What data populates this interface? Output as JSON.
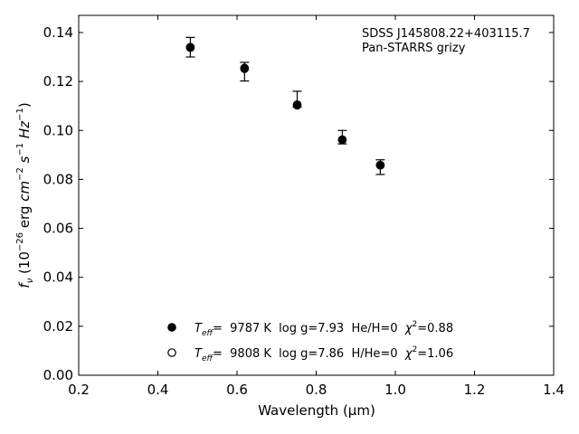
{
  "chart_data": {
    "type": "scatter",
    "xlabel": "Wavelength (μm)",
    "ylabel_parts": {
      "f": "f",
      "nu": "ν",
      "open": " (10",
      "exp26": "−26",
      "erg": " erg ",
      "cm": "cm",
      "exp2": "−2",
      "s": " s",
      "exp1": "−1",
      "hz": " Hz",
      "exp1b": "−1",
      "close": ")"
    },
    "xlim": [
      0.2,
      1.4
    ],
    "ylim": [
      0.0,
      0.147
    ],
    "x_ticks": [
      0.2,
      0.4,
      0.6,
      0.8,
      1.0,
      1.2,
      1.4
    ],
    "x_tick_labels": [
      "0.2",
      "0.4",
      "0.6",
      "0.8",
      "1.0",
      "1.2",
      "1.4"
    ],
    "y_ticks": [
      0.0,
      0.02,
      0.04,
      0.06,
      0.08,
      0.1,
      0.12,
      0.14
    ],
    "y_tick_labels": [
      "0.00",
      "0.02",
      "0.04",
      "0.06",
      "0.08",
      "0.10",
      "0.12",
      "0.14"
    ],
    "grid": false,
    "observed": {
      "x": [
        0.482,
        0.619,
        0.752,
        0.866,
        0.962
      ],
      "y": [
        0.134,
        0.1255,
        0.1105,
        0.0965,
        0.086
      ],
      "yerr_low": [
        0.004,
        0.0053,
        0.001,
        0.002,
        0.004
      ],
      "yerr_high": [
        0.004,
        0.0023,
        0.0055,
        0.0035,
        0.002
      ]
    },
    "series": [
      {
        "marker": "filled",
        "x": [
          0.482,
          0.619,
          0.752,
          0.866,
          0.962
        ],
        "y": [
          0.134,
          0.1255,
          0.1105,
          0.0962,
          0.0858
        ]
      },
      {
        "marker": "open",
        "x": [
          0.482,
          0.619,
          0.752,
          0.866,
          0.962
        ],
        "y": [
          0.1338,
          0.1252,
          0.1103,
          0.0962,
          0.0858
        ]
      }
    ],
    "annotation_lines": [
      "SDSS J145808.22+403115.7",
      "Pan-STARRS grizy"
    ],
    "legend": [
      {
        "marker": "filled",
        "teff_sym": "T",
        "teff_sub": "eff",
        "text_a": "=  9787 K  log g=7.93  He/H=0  ",
        "chi": "χ",
        "chi_sup": "2",
        "text_b": "=0.88"
      },
      {
        "marker": "open",
        "teff_sym": "T",
        "teff_sub": "eff",
        "text_a": "=  9808 K  log g=7.86  H/He=0  ",
        "chi": "χ",
        "chi_sup": "2",
        "text_b": "=1.06"
      }
    ]
  }
}
